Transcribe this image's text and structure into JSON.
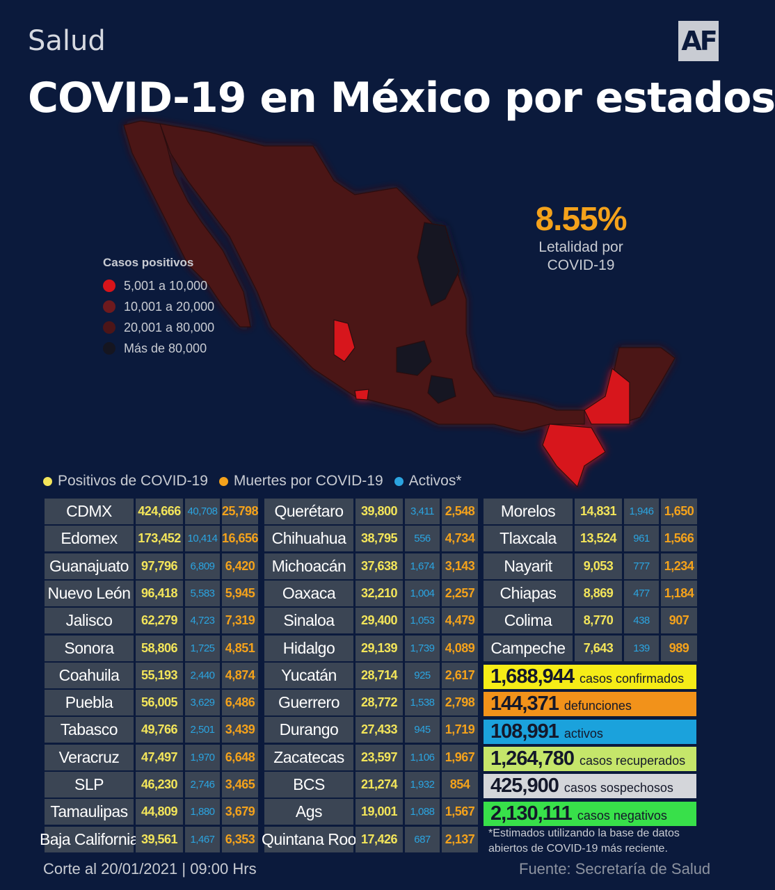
{
  "section": "Salud",
  "logo": "AF",
  "title": "COVID-19 en México por estados",
  "colors": {
    "background": "#0b1a3c",
    "positivos": "#f3e55a",
    "muertes": "#f4a21b",
    "activos": "#2ba4e0",
    "range_5k_10k": "#d7141a",
    "range_10k_20k": "#6e1a1e",
    "range_20k_80k": "#4c1518",
    "range_80k_plus": "#151520"
  },
  "legend": {
    "title": "Casos positivos",
    "items": [
      {
        "label": "5,001 a 10,000",
        "color": "#d7141a"
      },
      {
        "label": "10,001 a 20,000",
        "color": "#6e1a1e"
      },
      {
        "label": "20,001 a 80,000",
        "color": "#4c1518"
      },
      {
        "label": "Más de 80,000",
        "color": "#151520"
      }
    ]
  },
  "letalidad": {
    "value": "8.55%",
    "label_line1": "Letalidad por",
    "label_line2": "COVID-19"
  },
  "keys": [
    {
      "label": "Positivos de COVID-19",
      "color": "#f3e55a"
    },
    {
      "label": "Muertes por COVID-19",
      "color": "#f4a21b"
    },
    {
      "label": "Activos*",
      "color": "#2ba4e0"
    }
  ],
  "columns": [
    [
      {
        "estado": "CDMX",
        "positivos": "424,666",
        "activos": "40,708",
        "muertes": "25,798"
      },
      {
        "estado": "Edomex",
        "positivos": "173,452",
        "activos": "10,414",
        "muertes": "16,656"
      },
      {
        "estado": "Guanajuato",
        "positivos": "97,796",
        "activos": "6,809",
        "muertes": "6,420"
      },
      {
        "estado": "Nuevo León",
        "positivos": "96,418",
        "activos": "5,583",
        "muertes": "5,945"
      },
      {
        "estado": "Jalisco",
        "positivos": "62,279",
        "activos": "4,723",
        "muertes": "7,319"
      },
      {
        "estado": "Sonora",
        "positivos": "58,806",
        "activos": "1,725",
        "muertes": "4,851"
      },
      {
        "estado": "Coahuila",
        "positivos": "55,193",
        "activos": "2,440",
        "muertes": "4,874"
      },
      {
        "estado": "Puebla",
        "positivos": "56,005",
        "activos": "3,629",
        "muertes": "6,486"
      },
      {
        "estado": "Tabasco",
        "positivos": "49,766",
        "activos": "2,501",
        "muertes": "3,439"
      },
      {
        "estado": "Veracruz",
        "positivos": "47,497",
        "activos": "1,970",
        "muertes": "6,648"
      },
      {
        "estado": "SLP",
        "positivos": "46,230",
        "activos": "2,746",
        "muertes": "3,465"
      },
      {
        "estado": "Tamaulipas",
        "positivos": "44,809",
        "activos": "1,880",
        "muertes": "3,679"
      },
      {
        "estado": "Baja California",
        "positivos": "39,561",
        "activos": "1,467",
        "muertes": "6,353"
      }
    ],
    [
      {
        "estado": "Querétaro",
        "positivos": "39,800",
        "activos": "3,411",
        "muertes": "2,548"
      },
      {
        "estado": "Chihuahua",
        "positivos": "38,795",
        "activos": "556",
        "muertes": "4,734"
      },
      {
        "estado": "Michoacán",
        "positivos": "37,638",
        "activos": "1,674",
        "muertes": "3,143"
      },
      {
        "estado": "Oaxaca",
        "positivos": "32,210",
        "activos": "1,004",
        "muertes": "2,257"
      },
      {
        "estado": "Sinaloa",
        "positivos": "29,400",
        "activos": "1,053",
        "muertes": "4,479"
      },
      {
        "estado": "Hidalgo",
        "positivos": "29,139",
        "activos": "1,739",
        "muertes": "4,089"
      },
      {
        "estado": "Yucatán",
        "positivos": "28,714",
        "activos": "925",
        "muertes": "2,617"
      },
      {
        "estado": "Guerrero",
        "positivos": "28,772",
        "activos": "1,538",
        "muertes": "2,798"
      },
      {
        "estado": "Durango",
        "positivos": "27,433",
        "activos": "945",
        "muertes": "1,719"
      },
      {
        "estado": "Zacatecas",
        "positivos": "23,597",
        "activos": "1,106",
        "muertes": "1,967"
      },
      {
        "estado": "BCS",
        "positivos": "21,274",
        "activos": "1,932",
        "muertes": "854"
      },
      {
        "estado": "Ags",
        "positivos": "19,001",
        "activos": "1,088",
        "muertes": "1,567"
      },
      {
        "estado": "Quintana Roo",
        "positivos": "17,426",
        "activos": "687",
        "muertes": "2,137"
      }
    ],
    [
      {
        "estado": "Morelos",
        "positivos": "14,831",
        "activos": "1,946",
        "muertes": "1,650"
      },
      {
        "estado": "Tlaxcala",
        "positivos": "13,524",
        "activos": "961",
        "muertes": "1,566"
      },
      {
        "estado": "Nayarit",
        "positivos": "9,053",
        "activos": "777",
        "muertes": "1,234"
      },
      {
        "estado": "Chiapas",
        "positivos": "8,869",
        "activos": "477",
        "muertes": "1,184"
      },
      {
        "estado": "Colima",
        "positivos": "8,770",
        "activos": "438",
        "muertes": "907"
      },
      {
        "estado": "Campeche",
        "positivos": "7,643",
        "activos": "139",
        "muertes": "989"
      }
    ]
  ],
  "summary": [
    {
      "value": "1,688,944",
      "label": "casos confirmados",
      "color": "#f5ec17"
    },
    {
      "value": "144,371",
      "label": "defunciones",
      "color": "#f2921a"
    },
    {
      "value": "108,991",
      "label": "activos",
      "color": "#1ba2dc"
    },
    {
      "value": "1,264,780",
      "label": "casos recuperados",
      "color": "#c5e66a"
    },
    {
      "value": "425,900",
      "label": "casos sospechosos",
      "color": "#d4d6da"
    },
    {
      "value": "2,130,111",
      "label": "casos negativos",
      "color": "#38e04a"
    }
  ],
  "note": "*Estimados utilizando la base de datos abiertos de COVID-19 más reciente.",
  "footer_left": "Corte al 20/01/2021 | 09:00 Hrs",
  "footer_right": "Fuente: Secretaría de Salud"
}
